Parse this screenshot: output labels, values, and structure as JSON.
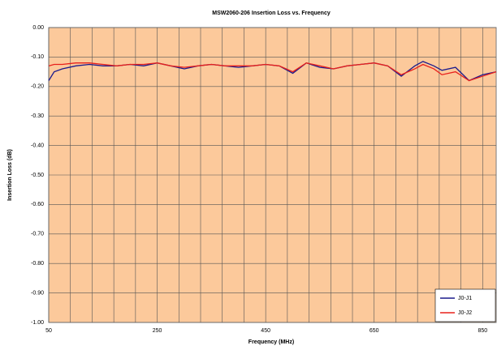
{
  "chart_data": {
    "type": "line",
    "title": "MSW2060-206 Insertion Loss vs. Frequency",
    "xlabel": "Frequency (MHz)",
    "ylabel": "Insertion Loss (dB)",
    "x": [
      50,
      60,
      75,
      100,
      125,
      150,
      175,
      200,
      225,
      250,
      275,
      300,
      325,
      350,
      375,
      400,
      425,
      450,
      475,
      500,
      525,
      550,
      575,
      600,
      625,
      650,
      675,
      700,
      725,
      740,
      760,
      775,
      800,
      825,
      850,
      875
    ],
    "series": [
      {
        "name": "J0-J1",
        "color": "#1a1a8c",
        "values": [
          -0.18,
          -0.15,
          -0.14,
          -0.13,
          -0.125,
          -0.13,
          -0.13,
          -0.125,
          -0.13,
          -0.12,
          -0.13,
          -0.14,
          -0.13,
          -0.125,
          -0.13,
          -0.135,
          -0.13,
          -0.125,
          -0.13,
          -0.155,
          -0.12,
          -0.135,
          -0.14,
          -0.13,
          -0.125,
          -0.12,
          -0.13,
          -0.165,
          -0.13,
          -0.115,
          -0.13,
          -0.145,
          -0.135,
          -0.18,
          -0.16,
          -0.15
        ]
      },
      {
        "name": "J0-J2",
        "color": "#e8201c",
        "values": [
          -0.13,
          -0.125,
          -0.125,
          -0.12,
          -0.12,
          -0.125,
          -0.13,
          -0.125,
          -0.125,
          -0.12,
          -0.13,
          -0.135,
          -0.13,
          -0.125,
          -0.13,
          -0.13,
          -0.13,
          -0.125,
          -0.13,
          -0.15,
          -0.12,
          -0.13,
          -0.14,
          -0.13,
          -0.125,
          -0.12,
          -0.13,
          -0.16,
          -0.14,
          -0.125,
          -0.14,
          -0.16,
          -0.15,
          -0.18,
          -0.165,
          -0.15
        ]
      }
    ],
    "xlim": [
      50,
      875
    ],
    "xticks": [
      50,
      250,
      450,
      650,
      850
    ],
    "xgrid": [
      90,
      130,
      170,
      210,
      290,
      330,
      370,
      410,
      490,
      530,
      570,
      610,
      690,
      730,
      770,
      810
    ],
    "ylim": [
      -1,
      0
    ],
    "yticks": [
      {
        "value": 0,
        "label": "0.00"
      },
      {
        "value": -0.1,
        "label": "-0.10"
      },
      {
        "value": -0.2,
        "label": "-0.20"
      },
      {
        "value": -0.3,
        "label": "-0.30"
      },
      {
        "value": -0.4,
        "label": "-0.40"
      },
      {
        "value": -0.5,
        "label": "-0.50"
      },
      {
        "value": -0.6,
        "label": "-0.60"
      },
      {
        "value": -0.7,
        "label": "-0.70"
      },
      {
        "value": -0.8,
        "label": "-0.80"
      },
      {
        "value": -0.9,
        "label": "-0.90"
      },
      {
        "value": -1,
        "label": "-1.00"
      }
    ],
    "grid": true,
    "legend": "lower right",
    "plot_color": "#fcc99b"
  }
}
